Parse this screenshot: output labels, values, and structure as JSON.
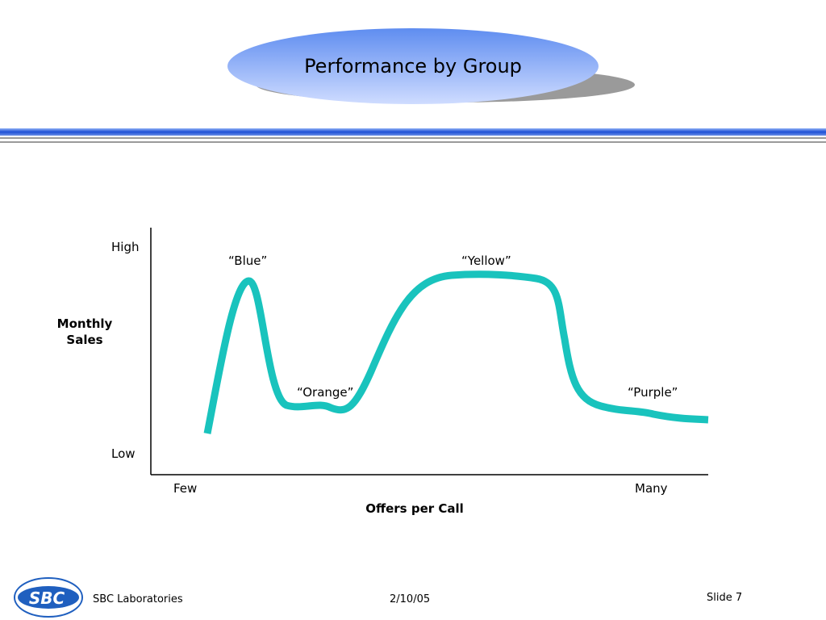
{
  "header": {
    "title": "Performance by Group"
  },
  "diagram": {
    "y_axis": {
      "label": "Monthly Sales",
      "high": "High",
      "low": "Low"
    },
    "x_axis": {
      "label": "Offers per Call",
      "few": "Few",
      "many": "Many"
    },
    "groups": [
      "“Blue”",
      "“Orange”",
      "“Yellow”",
      "“Purple”"
    ]
  },
  "footer": {
    "logo": "SBC",
    "company": "SBC Laboratories",
    "date": "2/10/05",
    "slide": "Slide 7"
  }
}
